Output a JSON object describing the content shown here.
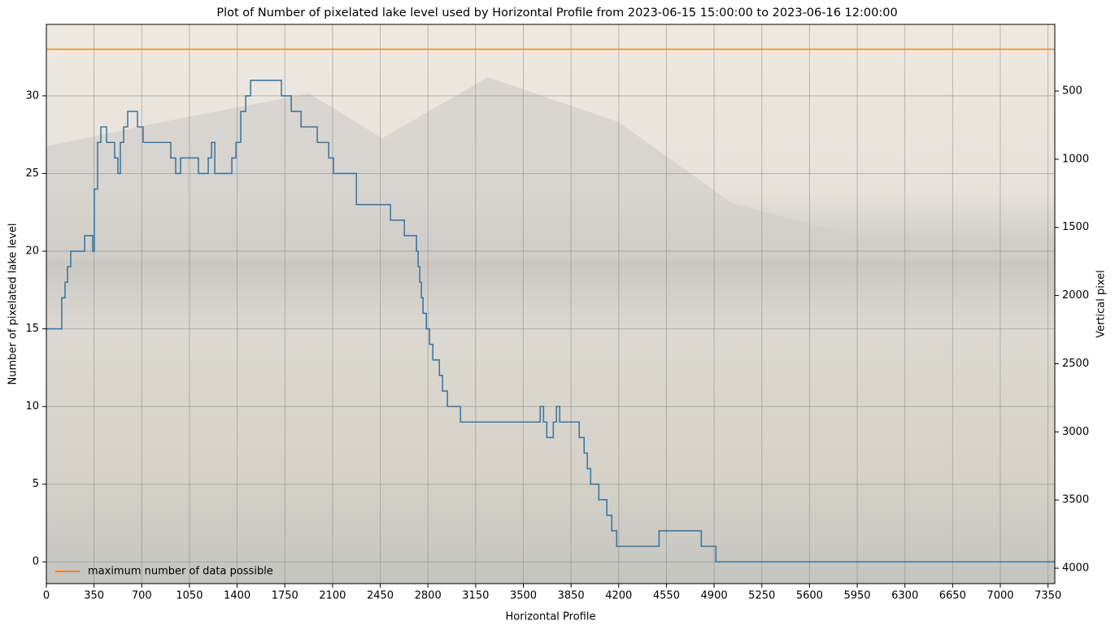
{
  "chart_data": {
    "type": "line",
    "step": "post",
    "title": "Plot of Number of pixelated lake level used by Horizontal Profile from 2023-06-15 15:00:00 to 2023-06-16 12:00:00",
    "xlabel": "Horizontal Profile",
    "ylabel": "Number of pixelated lake level",
    "y2label": "Vertical pixel",
    "grid": true,
    "legend": "lower left",
    "xlim": [
      0,
      7400
    ],
    "ylim": [
      -1.4,
      34.6
    ],
    "y2lim": [
      4113,
      11
    ],
    "xticks": [
      0,
      350,
      700,
      1050,
      1400,
      1750,
      2100,
      2450,
      2800,
      3150,
      3500,
      3850,
      4200,
      4550,
      4900,
      5250,
      5600,
      5950,
      6300,
      6650,
      7000,
      7350
    ],
    "yticks": [
      0,
      5,
      10,
      15,
      20,
      25,
      30
    ],
    "y2ticks": [
      500,
      1000,
      1500,
      2000,
      2500,
      3000,
      3500,
      4000
    ],
    "series": [
      {
        "color": "#2f6f9f",
        "x": [
          0,
          113,
          137,
          155,
          179,
          281,
          340,
          352,
          376,
          400,
          442,
          501,
          525,
          543,
          567,
          597,
          669,
          710,
          913,
          949,
          985,
          1116,
          1188,
          1212,
          1236,
          1361,
          1391,
          1427,
          1463,
          1499,
          1725,
          1797,
          1869,
          1988,
          2072,
          2107,
          2275,
          2525,
          2627,
          2716,
          2728,
          2740,
          2752,
          2764,
          2788,
          2812,
          2836,
          2884,
          2907,
          2943,
          3039,
          3624,
          3648,
          3672,
          3720,
          3743,
          3767,
          3910,
          3946,
          3970,
          3994,
          4054,
          4113,
          4149,
          4185,
          4496,
          4806,
          4913,
          7400
        ],
        "values": [
          15,
          17,
          18,
          19,
          20,
          21,
          20,
          24,
          27,
          28,
          27,
          26,
          25,
          27,
          28,
          29,
          28,
          27,
          26,
          25,
          26,
          25,
          26,
          27,
          25,
          26,
          27,
          29,
          30,
          31,
          30,
          29,
          28,
          27,
          26,
          25,
          23,
          22,
          21,
          20,
          19,
          18,
          17,
          16,
          15,
          14,
          13,
          12,
          11,
          10,
          9,
          10,
          9,
          8,
          9,
          10,
          9,
          8,
          7,
          6,
          5,
          4,
          3,
          2,
          1,
          2,
          1,
          0,
          0
        ]
      },
      {
        "name": "maximum number of data possible",
        "color": "#ff7f0e",
        "x": [
          0,
          7400
        ],
        "values": [
          33,
          33
        ]
      }
    ]
  }
}
